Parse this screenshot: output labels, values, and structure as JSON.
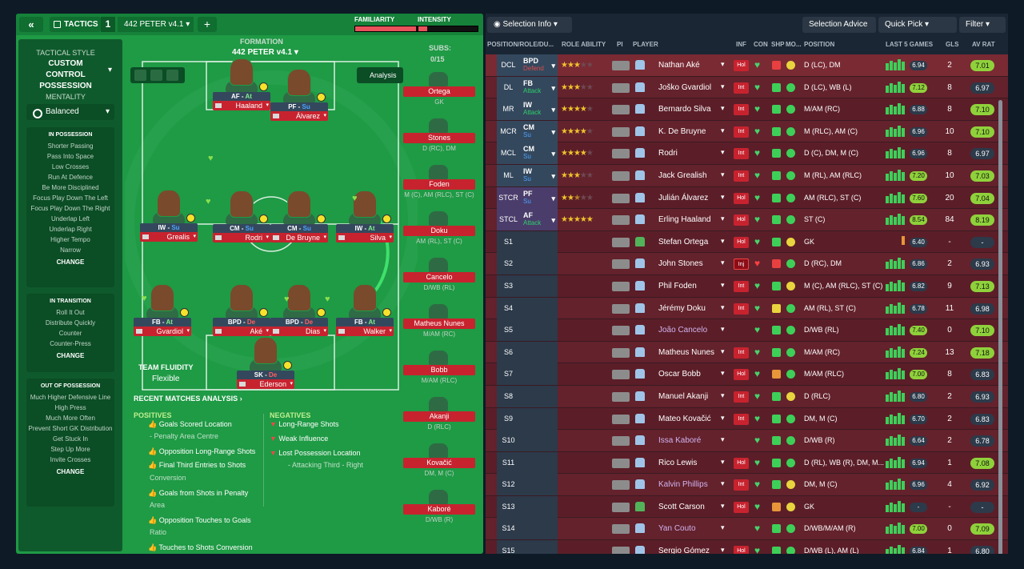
{
  "header": {
    "tactics_label": "TACTICS",
    "slot": "1",
    "tactic_name": "442 PETER v4.1",
    "familiarity_label": "FAMILIARITY",
    "intensity_label": "INTENSITY",
    "familiarity_value": 0.9,
    "intensity_value": 0.15
  },
  "sidebar": {
    "style_title": "TACTICAL STYLE",
    "style_value": "CUSTOM CONTROL POSSESSION",
    "mentality_title": "MENTALITY",
    "mentality_value": "Balanced",
    "in_possession": {
      "title": "IN POSSESSION",
      "items": [
        "Shorter Passing",
        "Pass Into Space",
        "Low Crosses",
        "Run At Defence",
        "Be More Disciplined",
        "Focus Play Down The Left",
        "Focus Play Down The Right",
        "Underlap Left",
        "Underlap Right",
        "Higher Tempo",
        "Narrow"
      ],
      "change": "CHANGE"
    },
    "in_transition": {
      "title": "IN TRANSITION",
      "items": [
        "Roll It Out",
        "Distribute Quickly",
        "Counter",
        "Counter-Press"
      ],
      "change": "CHANGE"
    },
    "out_of_possession": {
      "title": "OUT OF POSSESSION",
      "items": [
        "Much Higher Defensive Line",
        "High Press",
        "Much More Often",
        "Prevent Short GK Distribution",
        "Get Stuck In",
        "Step Up More",
        "Invite Crosses"
      ],
      "change": "CHANGE"
    }
  },
  "formation": {
    "label": "FORMATION",
    "name": "442 PETER v4.1",
    "analysis_label": "Analysis",
    "subs_label": "SUBS:",
    "subs_count": "0/15"
  },
  "pitch_players": [
    {
      "role": "AF",
      "duty": "At",
      "name": "Haaland"
    },
    {
      "role": "PF",
      "duty": "Su",
      "name": "Álvarez"
    },
    {
      "role": "IW",
      "duty": "Su",
      "name": "Grealis"
    },
    {
      "role": "CM",
      "duty": "Su",
      "name": "Rodri"
    },
    {
      "role": "CM",
      "duty": "Su",
      "name": "De Bruyne"
    },
    {
      "role": "IW",
      "duty": "At",
      "name": "Silva"
    },
    {
      "role": "FB",
      "duty": "At",
      "name": "Gvardiol"
    },
    {
      "role": "BPD",
      "duty": "De",
      "name": "Aké"
    },
    {
      "role": "BPD",
      "duty": "De",
      "name": "Dias"
    },
    {
      "role": "FB",
      "duty": "At",
      "name": "Walker"
    },
    {
      "role": "SK",
      "duty": "De",
      "name": "Ederson"
    }
  ],
  "subs": [
    {
      "name": "Ortega",
      "pos": "GK"
    },
    {
      "name": "Stones",
      "pos": "D (RC), DM"
    },
    {
      "name": "Foden",
      "pos": "M (C), AM (RLC), ST (C)"
    },
    {
      "name": "Doku",
      "pos": "AM (RL), ST (C)"
    },
    {
      "name": "Cancelo",
      "pos": "D/WB (RL)"
    },
    {
      "name": "Matheus Nunes",
      "pos": "M/AM (RC)"
    },
    {
      "name": "Bobb",
      "pos": "M/AM (RLC)"
    },
    {
      "name": "Akanji",
      "pos": "D (RLC)"
    },
    {
      "name": "Kovačić",
      "pos": "DM, M (C)"
    },
    {
      "name": "Kaboré",
      "pos": "D/WB (R)"
    }
  ],
  "team_fluidity": {
    "label": "TEAM FLUIDITY",
    "value": "Flexible"
  },
  "analysis": {
    "title": "RECENT MATCHES ANALYSIS",
    "positives_label": "POSITIVES",
    "negatives_label": "NEGATIVES",
    "positives": [
      "Goals Scored Location",
      "- Penalty Area Centre",
      "Opposition Long-Range Shots",
      "Final Third Entries to Shots",
      "Conversion",
      "Goals from Shots in Penalty",
      "Area",
      "Opposition Touches to Goals",
      "Ratio",
      "Touches to Shots Conversion"
    ],
    "negatives": [
      "Long-Range Shots",
      "Weak Influence",
      "Lost Possession Location",
      "- Attacking Third - Right"
    ]
  },
  "right_toolbar": {
    "selection_info": "Selection Info",
    "selection_advice": "Selection Advice",
    "quick_pick": "Quick Pick",
    "filter": "Filter"
  },
  "columns": [
    "POSITION/ROLE/DU...",
    "ROLE ABILITY",
    "PI",
    "PLAYER",
    "INF",
    "CON",
    "SHP",
    "MO...",
    "POSITION",
    "LAST 5 GAMES",
    "GLS",
    "AV RAT"
  ],
  "rows": [
    {
      "pos": "DCL",
      "role": "BPD",
      "duty": "Defend",
      "stars": 3,
      "player": "Nathan Aké",
      "inf": "Hol",
      "position": "D (LC), DM",
      "rating": "6.94",
      "gls": "2",
      "avrat": "7.01",
      "green": false
    },
    {
      "pos": "DL",
      "role": "FB",
      "duty": "Attack",
      "stars": 3,
      "player": "Joško Gvardiol",
      "inf": "Int",
      "position": "D (LC), WB (L)",
      "rating": "7.12",
      "gls": "8",
      "avrat": "6.97",
      "green": true
    },
    {
      "pos": "MR",
      "role": "IW",
      "duty": "Attack",
      "stars": 4,
      "player": "Bernardo Silva",
      "inf": "Int",
      "position": "M/AM (RC)",
      "rating": "6.88",
      "gls": "8",
      "avrat": "7.10",
      "green": false
    },
    {
      "pos": "MCR",
      "role": "CM",
      "duty": "Su",
      "stars": 4,
      "player": "K. De Bruyne",
      "inf": "Int",
      "position": "M (RLC), AM (C)",
      "rating": "6.96",
      "gls": "10",
      "avrat": "7.10",
      "green": false
    },
    {
      "pos": "MCL",
      "role": "CM",
      "duty": "Su",
      "stars": 4,
      "player": "Rodri",
      "inf": "Int",
      "position": "D (C), DM, M (C)",
      "rating": "6.96",
      "gls": "8",
      "avrat": "6.97",
      "green": false
    },
    {
      "pos": "ML",
      "role": "IW",
      "duty": "Su",
      "stars": 3,
      "player": "Jack Grealish",
      "inf": "Int",
      "position": "M (RL), AM (RLC)",
      "rating": "7.20",
      "gls": "10",
      "avrat": "7.03",
      "green": true
    },
    {
      "pos": "STCR",
      "role": "PF",
      "duty": "Su",
      "stars": 2.5,
      "player": "Julián Álvarez",
      "inf": "Hol",
      "position": "AM (RLC), ST (C)",
      "rating": "7.60",
      "gls": "20",
      "avrat": "7.04",
      "green": true
    },
    {
      "pos": "STCL",
      "role": "AF",
      "duty": "Attack",
      "stars": 5,
      "player": "Erling Haaland",
      "inf": "Hol",
      "position": "ST (C)",
      "rating": "8.54",
      "gls": "84",
      "avrat": "8.19",
      "green": true
    },
    {
      "pos": "S1",
      "role": "",
      "duty": "",
      "stars": 0,
      "player": "Stefan Ortega",
      "inf": "Hol",
      "position": "GK",
      "rating": "6.40",
      "gls": "-",
      "avrat": "-",
      "green": false
    },
    {
      "pos": "S2",
      "role": "",
      "duty": "",
      "stars": 0,
      "player": "John Stones",
      "inf": "Inj",
      "position": "D (RC), DM",
      "rating": "6.86",
      "gls": "2",
      "avrat": "6.93",
      "green": false
    },
    {
      "pos": "S3",
      "role": "",
      "duty": "",
      "stars": 0,
      "player": "Phil Foden",
      "inf": "Int",
      "position": "M (C), AM (RLC), ST (C)",
      "rating": "6.82",
      "gls": "9",
      "avrat": "7.13",
      "green": false
    },
    {
      "pos": "S4",
      "role": "",
      "duty": "",
      "stars": 0,
      "player": "Jérémy Doku",
      "inf": "Int",
      "position": "AM (RL), ST (C)",
      "rating": "6.78",
      "gls": "11",
      "avrat": "6.98",
      "green": false
    },
    {
      "pos": "S5",
      "role": "",
      "duty": "",
      "stars": 0,
      "player": "João Cancelo",
      "inf": "",
      "position": "D/WB (RL)",
      "rating": "7.40",
      "gls": "0",
      "avrat": "7.10",
      "green": true
    },
    {
      "pos": "S6",
      "role": "",
      "duty": "",
      "stars": 0,
      "player": "Matheus Nunes",
      "inf": "Int",
      "position": "M/AM (RC)",
      "rating": "7.24",
      "gls": "13",
      "avrat": "7.18",
      "green": true
    },
    {
      "pos": "S7",
      "role": "",
      "duty": "",
      "stars": 0,
      "player": "Oscar Bobb",
      "inf": "Hol",
      "position": "M/AM (RLC)",
      "rating": "7.00",
      "gls": "8",
      "avrat": "6.83",
      "green": true
    },
    {
      "pos": "S8",
      "role": "",
      "duty": "",
      "stars": 0,
      "player": "Manuel Akanji",
      "inf": "Int",
      "position": "D (RLC)",
      "rating": "6.80",
      "gls": "2",
      "avrat": "6.93",
      "green": false
    },
    {
      "pos": "S9",
      "role": "",
      "duty": "",
      "stars": 0,
      "player": "Mateo Kovačić",
      "inf": "Int",
      "position": "DM, M (C)",
      "rating": "6.70",
      "gls": "2",
      "avrat": "6.83",
      "green": false
    },
    {
      "pos": "S10",
      "role": "",
      "duty": "",
      "stars": 0,
      "player": "Issa Kaboré",
      "inf": "",
      "position": "D/WB (R)",
      "rating": "6.64",
      "gls": "2",
      "avrat": "6.78",
      "green": false
    },
    {
      "pos": "S11",
      "role": "",
      "duty": "",
      "stars": 0,
      "player": "Rico Lewis",
      "inf": "Hol",
      "position": "D (RL), WB (R), DM, M...",
      "rating": "6.94",
      "gls": "1",
      "avrat": "7.08",
      "green": false
    },
    {
      "pos": "S12",
      "role": "",
      "duty": "",
      "stars": 0,
      "player": "Kalvin Phillips",
      "inf": "Int",
      "position": "DM, M (C)",
      "rating": "6.96",
      "gls": "4",
      "avrat": "6.92",
      "green": false
    },
    {
      "pos": "S13",
      "role": "",
      "duty": "",
      "stars": 0,
      "player": "Scott Carson",
      "inf": "Hol",
      "position": "GK",
      "rating": "-",
      "gls": "-",
      "avrat": "-",
      "green": false
    },
    {
      "pos": "S14",
      "role": "",
      "duty": "",
      "stars": 0,
      "player": "Yan Couto",
      "inf": "",
      "position": "D/WB/M/AM (R)",
      "rating": "7.00",
      "gls": "0",
      "avrat": "7.09",
      "green": true
    },
    {
      "pos": "S15",
      "role": "",
      "duty": "",
      "stars": 0,
      "player": "Sergio Gómez",
      "inf": "Hol",
      "position": "D/WB (L), AM (L)",
      "rating": "6.84",
      "gls": "1",
      "avrat": "6.80",
      "green": false
    }
  ]
}
